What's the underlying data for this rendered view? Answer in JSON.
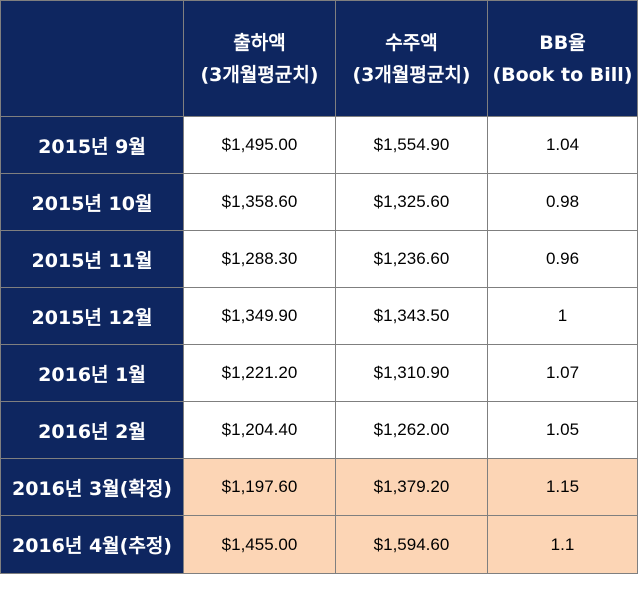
{
  "table": {
    "headers": [
      {
        "line1": "출하액",
        "line2": "(3개월평균치)"
      },
      {
        "line1": "수주액",
        "line2": "(3개월평균치)"
      },
      {
        "line1": "BB율",
        "line2": "(Book to Bill)"
      }
    ],
    "rows": [
      {
        "label": "2015년 9월",
        "shipment": "$1,495.00",
        "orders": "$1,554.90",
        "bb_ratio": "1.04",
        "highlighted": false
      },
      {
        "label": "2015년 10월",
        "shipment": "$1,358.60",
        "orders": "$1,325.60",
        "bb_ratio": "0.98",
        "highlighted": false
      },
      {
        "label": "2015년 11월",
        "shipment": "$1,288.30",
        "orders": "$1,236.60",
        "bb_ratio": "0.96",
        "highlighted": false
      },
      {
        "label": "2015년 12월",
        "shipment": "$1,349.90",
        "orders": "$1,343.50",
        "bb_ratio": "1",
        "highlighted": false
      },
      {
        "label": "2016년 1월",
        "shipment": "$1,221.20",
        "orders": "$1,310.90",
        "bb_ratio": "1.07",
        "highlighted": false
      },
      {
        "label": "2016년 2월",
        "shipment": "$1,204.40",
        "orders": "$1,262.00",
        "bb_ratio": "1.05",
        "highlighted": false
      },
      {
        "label": "2016년 3월(확정)",
        "shipment": "$1,197.60",
        "orders": "$1,379.20",
        "bb_ratio": "1.15",
        "highlighted": true
      },
      {
        "label": "2016년 4월(추정)",
        "shipment": "$1,455.00",
        "orders": "$1,594.60",
        "bb_ratio": "1.1",
        "highlighted": true
      }
    ]
  },
  "colors": {
    "header_bg": "#0e2660",
    "header_text": "#ffffff",
    "highlight_bg": "#fcd5b5",
    "cell_bg": "#ffffff",
    "border": "#7f7f7f"
  }
}
